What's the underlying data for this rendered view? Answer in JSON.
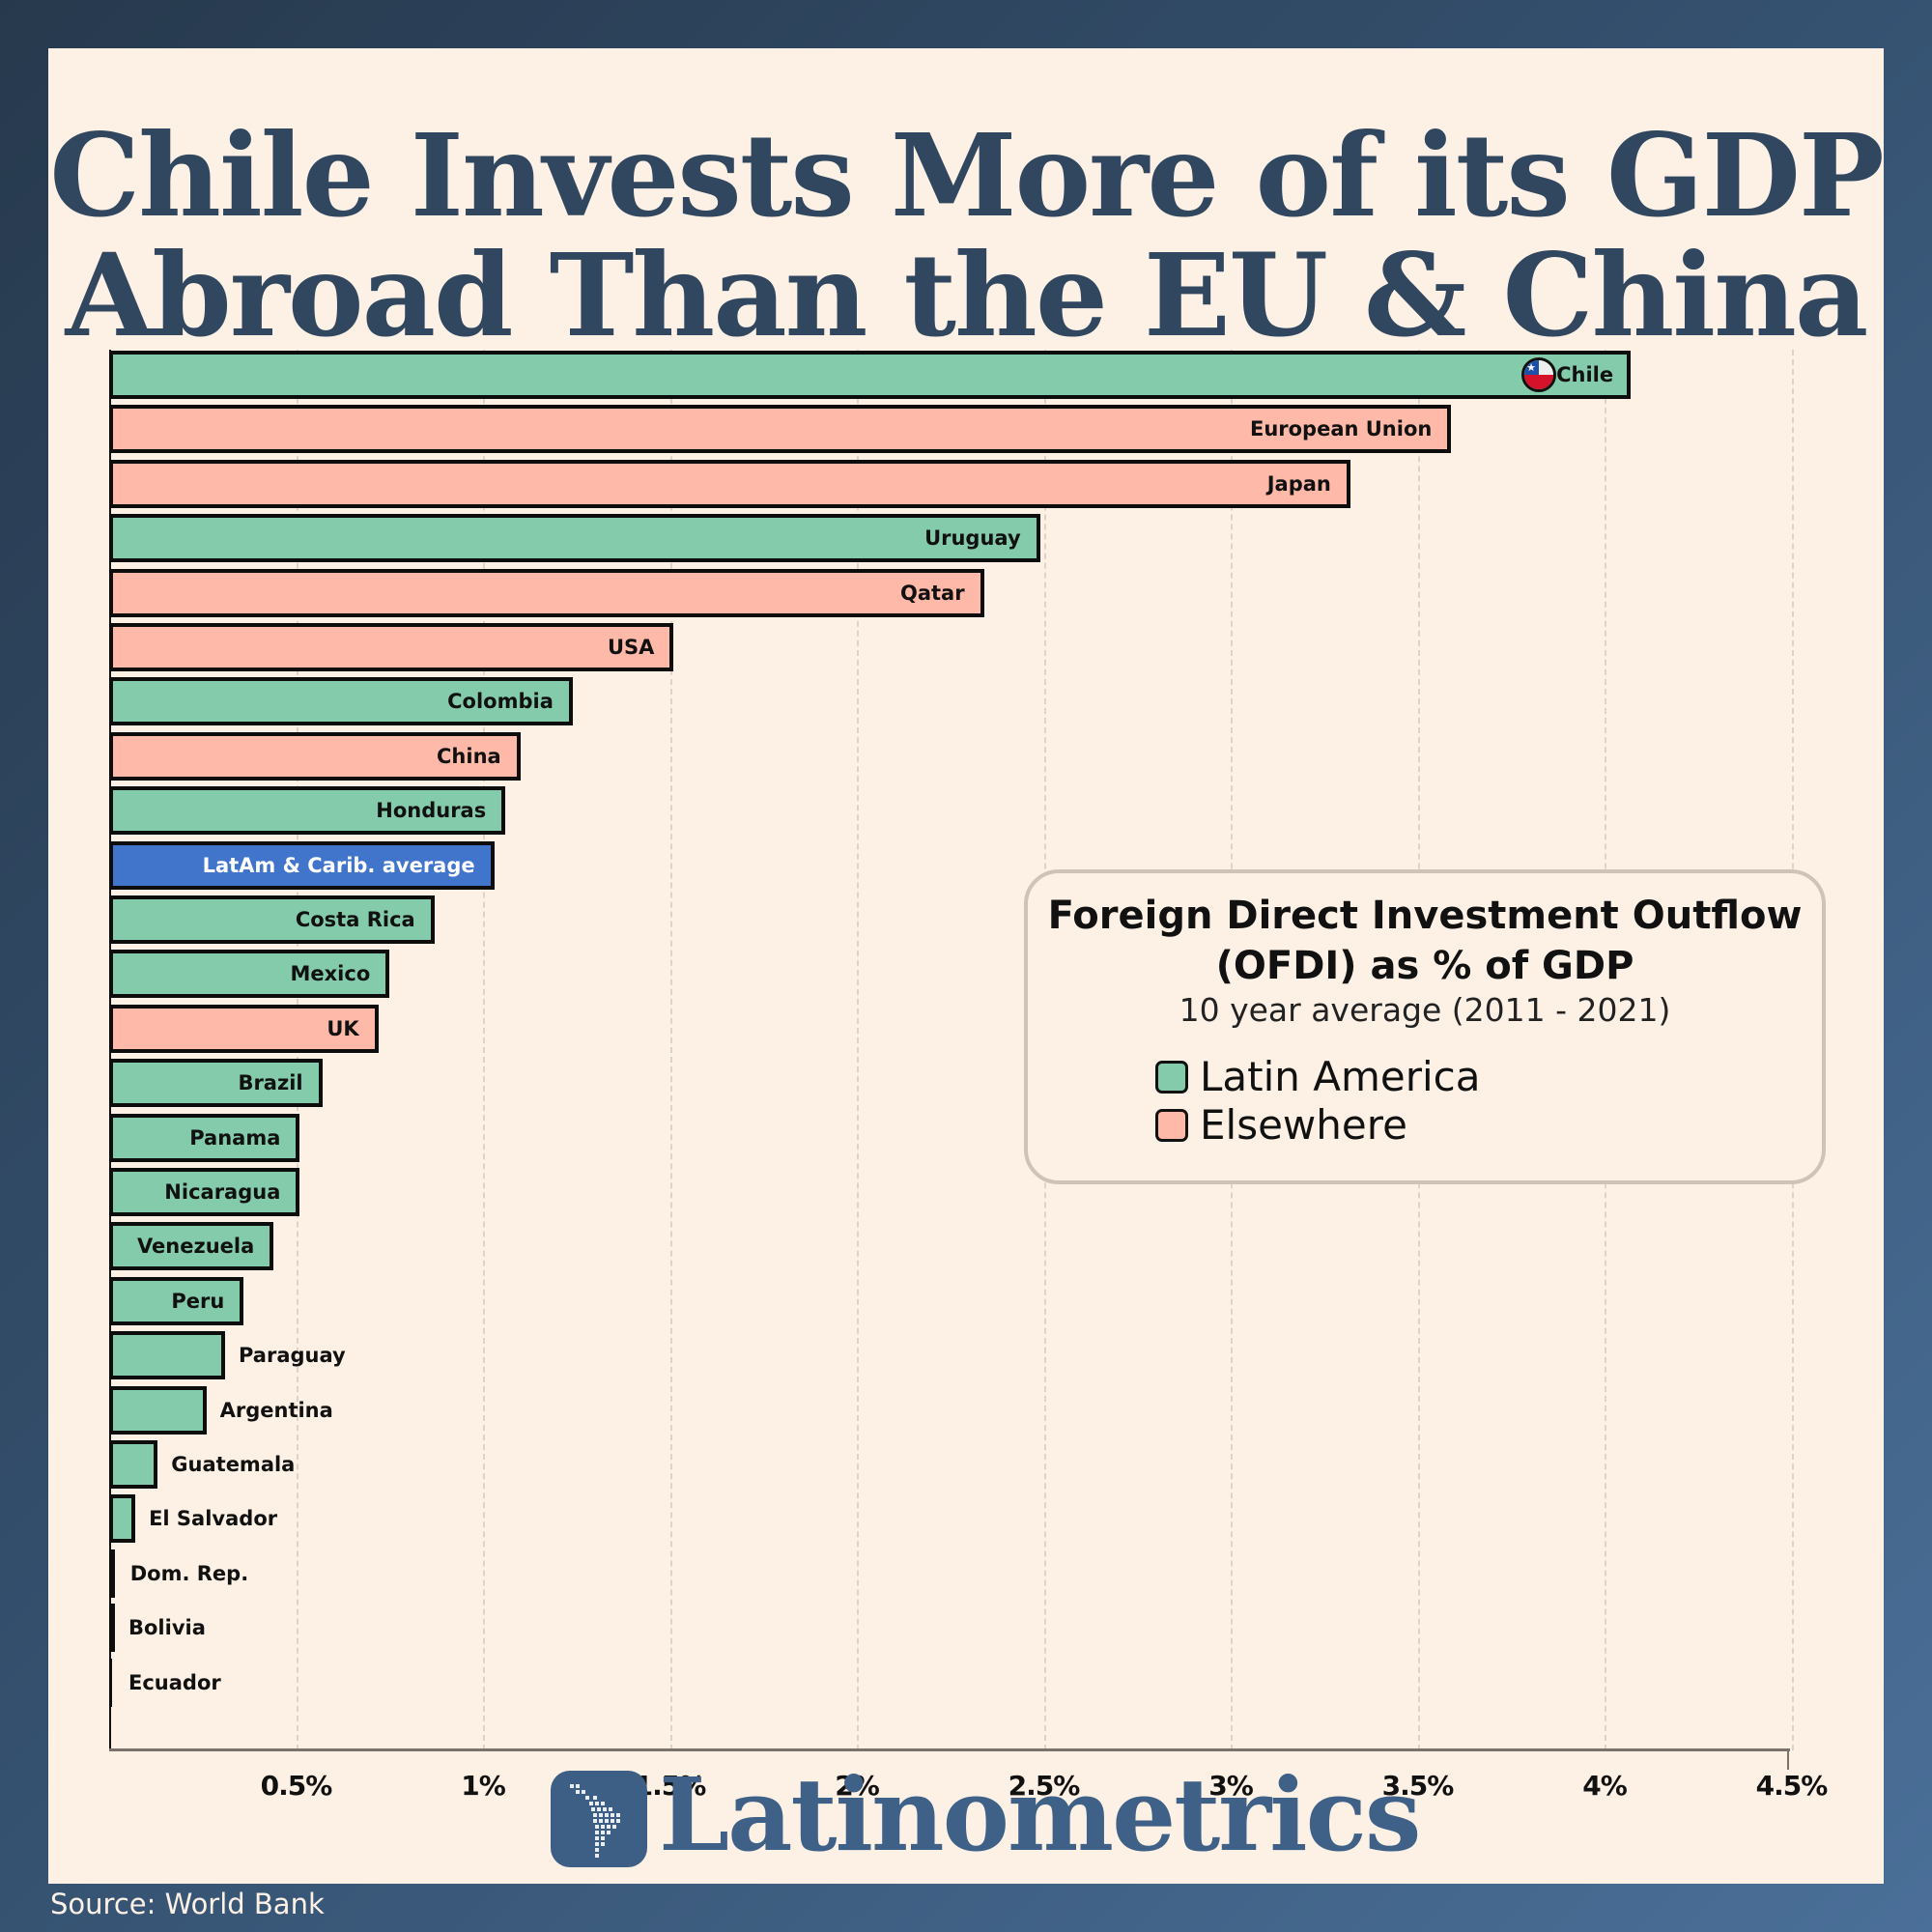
{
  "title": {
    "line1": "Chile Invests More of its GDP",
    "line2": "Abroad Than the EU & China"
  },
  "legend": {
    "title_line1": "Foreign Direct Investment Outflow",
    "title_line2": "(OFDI) as % of GDP",
    "subtitle": "10 year average (2011 - 2021)",
    "items": [
      {
        "label": "Latin America",
        "color": "#84cbab"
      },
      {
        "label": "Elsewhere",
        "color": "#ffb9a8"
      }
    ]
  },
  "axis": {
    "ticks": [
      "0.5%",
      "1%",
      "1.5%",
      "2%",
      "2.5%",
      "3%",
      "3.5%",
      "4%",
      "4.5%"
    ]
  },
  "branding": {
    "logo": "Latinometrics"
  },
  "source": "Source: World Bank",
  "colors": {
    "latin_america": "#84cbab",
    "elsewhere": "#ffb9a8",
    "average": "#4175cc",
    "title": "#30475f",
    "panel": "#fdf1e6"
  },
  "chart_data": {
    "type": "bar",
    "orientation": "horizontal",
    "title": "Chile Invests More of its GDP Abroad Than the EU & China",
    "subtitle": "Foreign Direct Investment Outflow (OFDI) as % of GDP — 10 year average (2011 - 2021)",
    "xlabel": "",
    "ylabel": "",
    "xlim": [
      0,
      4.5
    ],
    "x_ticks": [
      0.5,
      1,
      1.5,
      2,
      2.5,
      3,
      3.5,
      4,
      4.5
    ],
    "grid": "vertical dashed",
    "legend_position": "right-middle",
    "categories": [
      "Chile",
      "European Union",
      "Japan",
      "Uruguay",
      "Qatar",
      "USA",
      "Colombia",
      "China",
      "Honduras",
      "LatAm & Carib. average",
      "Costa Rica",
      "Mexico",
      "UK",
      "Brazil",
      "Panama",
      "Nicaragua",
      "Venezuela",
      "Peru",
      "Paraguay",
      "Argentina",
      "Guatemala",
      "El Salvador",
      "Dom. Rep.",
      "Bolivia",
      "Ecuador"
    ],
    "values": [
      4.07,
      3.59,
      3.32,
      2.49,
      2.34,
      1.51,
      1.24,
      1.1,
      1.06,
      1.03,
      0.87,
      0.75,
      0.72,
      0.57,
      0.51,
      0.51,
      0.44,
      0.36,
      0.31,
      0.26,
      0.13,
      0.07,
      0.02,
      0.015,
      0.005
    ],
    "groups": [
      "Latin America",
      "Elsewhere",
      "Elsewhere",
      "Latin America",
      "Elsewhere",
      "Elsewhere",
      "Latin America",
      "Elsewhere",
      "Latin America",
      "Average",
      "Latin America",
      "Latin America",
      "Elsewhere",
      "Latin America",
      "Latin America",
      "Latin America",
      "Latin America",
      "Latin America",
      "Latin America",
      "Latin America",
      "Latin America",
      "Latin America",
      "Latin America",
      "Latin America",
      "Latin America"
    ],
    "source": "World Bank"
  }
}
